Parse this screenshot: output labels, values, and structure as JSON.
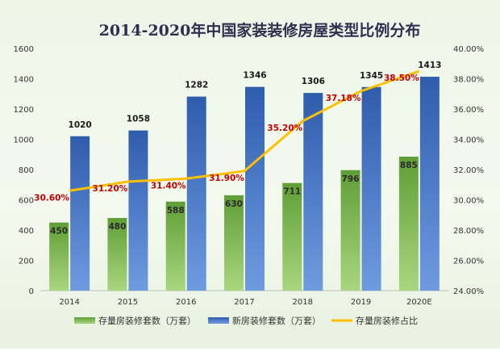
{
  "chart_data": {
    "type": "bar",
    "title": "2014-2020年中国家装装修房屋类型比例分布",
    "categories": [
      "2014",
      "2015",
      "2016",
      "2017",
      "2018",
      "2019",
      "2020E"
    ],
    "series": [
      {
        "name": "存量房装修套数（万套）",
        "type": "bar",
        "axis": "left",
        "color": "#70ad47",
        "values": [
          450,
          480,
          588,
          630,
          711,
          796,
          885
        ],
        "labels": [
          "450",
          "480",
          "588",
          "630",
          "711",
          "796",
          "885"
        ]
      },
      {
        "name": "新房装修套数（万套）",
        "type": "bar",
        "axis": "left",
        "color": "#4472c4",
        "values": [
          1020,
          1058,
          1282,
          1346,
          1306,
          1345,
          1413
        ],
        "labels": [
          "1020",
          "1058",
          "1282",
          "1346",
          "1306",
          "1345",
          "1413"
        ]
      },
      {
        "name": "存量房装修占比",
        "type": "line",
        "axis": "right",
        "color": "#ffc000",
        "values": [
          30.6,
          31.2,
          31.4,
          31.9,
          35.2,
          37.18,
          38.5
        ],
        "labels": [
          "30.60%",
          "31.20%",
          "31.40%",
          "31.90%",
          "35.20%",
          "37.18%",
          "38.50%"
        ]
      }
    ],
    "y_left": {
      "min": 0,
      "max": 1600,
      "step": 200,
      "ticks": [
        "0",
        "200",
        "400",
        "600",
        "800",
        "1000",
        "1200",
        "1400",
        "1600"
      ]
    },
    "y_right": {
      "min": 24,
      "max": 40,
      "step": 2,
      "ticks": [
        "24.00%",
        "26.00%",
        "28.00%",
        "30.00%",
        "32.00%",
        "34.00%",
        "36.00%",
        "38.00%",
        "40.00%"
      ]
    },
    "grid": false,
    "legend_position": "bottom"
  }
}
